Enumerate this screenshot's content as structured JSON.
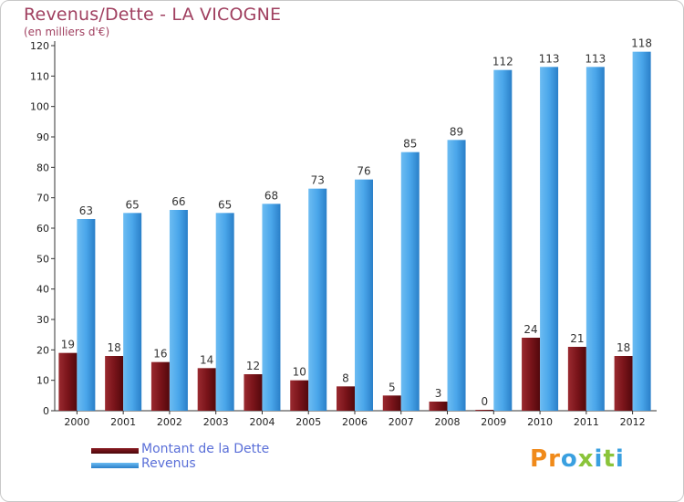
{
  "title": "Revenus/Dette - LA VICOGNE",
  "subtitle": "(en milliers d'€)",
  "logo": {
    "text": "Proxiti",
    "letters": [
      "P",
      "r",
      "o",
      "x",
      "i",
      "t",
      "i"
    ],
    "colors": [
      "#f08a1a",
      "#f08a1a",
      "#3aa0e0",
      "#8ac43a",
      "#3aa0e0",
      "#8ac43a",
      "#3aa0e0"
    ]
  },
  "legend": [
    {
      "name": "Montant de la Dette",
      "color": "#6a0e14"
    },
    {
      "name": "Revenus",
      "color": "#3d9ae0"
    }
  ],
  "chart_data": {
    "type": "bar",
    "title": "Revenus/Dette - LA VICOGNE",
    "subtitle": "(en milliers d'€)",
    "xlabel": "",
    "ylabel": "",
    "ylim": [
      0,
      120
    ],
    "yticks": [
      0,
      10,
      20,
      30,
      40,
      50,
      60,
      70,
      80,
      90,
      100,
      110,
      120
    ],
    "grid": false,
    "categories": [
      "2000",
      "2001",
      "2002",
      "2003",
      "2004",
      "2005",
      "2006",
      "2007",
      "2008",
      "2009",
      "2010",
      "2011",
      "2012"
    ],
    "series": [
      {
        "name": "Montant de la Dette",
        "color": "#7a141a",
        "values": [
          19,
          18,
          16,
          14,
          12,
          10,
          8,
          5,
          3,
          0,
          24,
          21,
          18
        ]
      },
      {
        "name": "Revenus",
        "color": "#4aa6ea",
        "values": [
          63,
          65,
          66,
          65,
          68,
          73,
          76,
          85,
          89,
          112,
          113,
          113,
          118
        ]
      }
    ]
  }
}
